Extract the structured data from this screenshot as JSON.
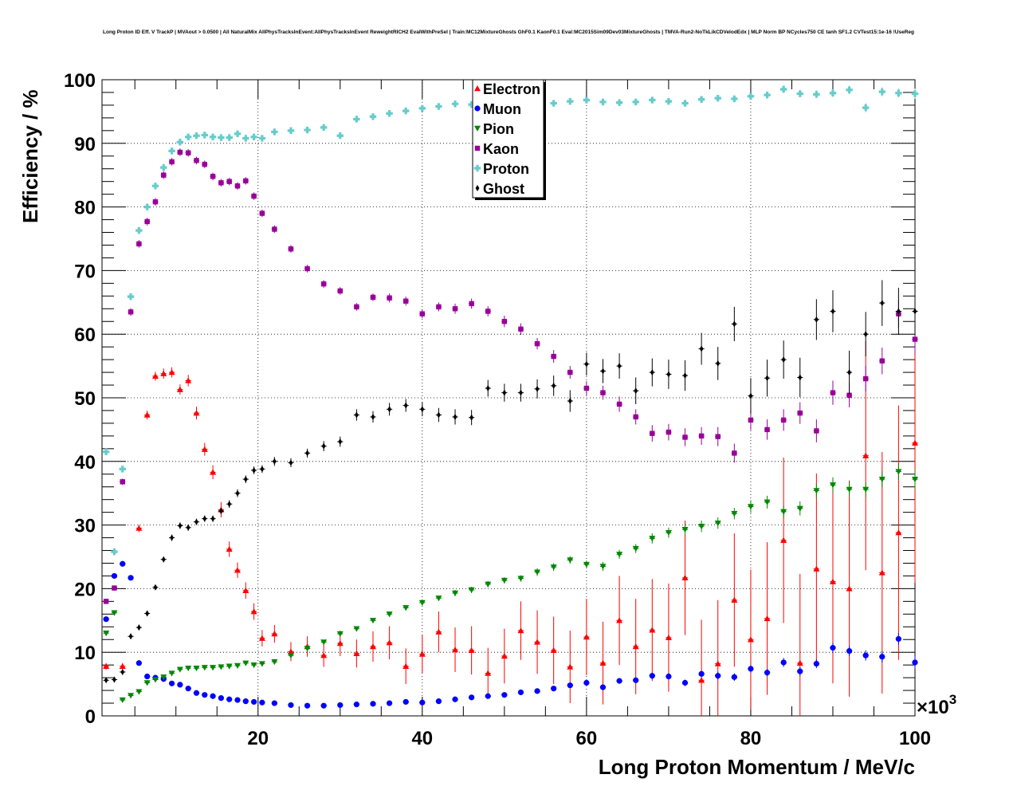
{
  "chart_data": {
    "type": "scatter",
    "title": "Long Proton ID Eff. V TrackP | MVAout > 0.0500 | All NaturalMix AllPhysTracksInEvent:AllPhysTracksInEvent ReweightRICH2 EvalWithPreSel | Train:MC12MixtureGhosts GhF0.1 KaonF0.1 Eval:MC2015Sim09Dev03MixtureGhosts | TMVA-Run2-NoTkLikCDVelodEdx | MLP Norm BP NCycles750 CE tanh SF1.2 CVTest15:1e-16 !UseReg",
    "xlabel": "Long Proton Momentum / MeV/c",
    "ylabel": "Efficiency / %",
    "x_multiplier": "×10",
    "x_multiplier_exp": "3",
    "xlim": [
      1,
      100
    ],
    "ylim": [
      0,
      100
    ],
    "x_ticks": [
      "20",
      "40",
      "60",
      "80",
      "100"
    ],
    "y_ticks": [
      "0",
      "10",
      "20",
      "30",
      "40",
      "50",
      "60",
      "70",
      "80",
      "90",
      "100"
    ],
    "grid": true,
    "legend_position": "top-center",
    "series": [
      {
        "name": "Electron",
        "color": "#ff0000",
        "marker": "triangle-up",
        "x": [
          1.5,
          3.5,
          5.5,
          6.5,
          7.5,
          8.5,
          9.5,
          10.5,
          11.5,
          12.5,
          13.5,
          14.5,
          15.5,
          16.5,
          17.5,
          18.5,
          19.5,
          20.5,
          22,
          24,
          26,
          28,
          30,
          32,
          34,
          36,
          38,
          40,
          42,
          44,
          46,
          48,
          50,
          52,
          54,
          56,
          58,
          60,
          62,
          64,
          66,
          68,
          70,
          72,
          74,
          76,
          78,
          80,
          82,
          84,
          86,
          88,
          90,
          92,
          94,
          96,
          98,
          100
        ],
        "y": [
          7.8,
          7.8,
          29.5,
          47.3,
          53.4,
          53.8,
          54,
          51.3,
          52.7,
          47.6,
          41.9,
          38.3,
          32.4,
          26.2,
          22.9,
          19.7,
          16.4,
          12.2,
          12.9,
          10.1,
          10.9,
          9.5,
          11.4,
          9.8,
          10.9,
          11.5,
          7.8,
          9.7,
          13.2,
          10.4,
          10.3,
          6.7,
          9.4,
          13.4,
          11.6,
          10.3,
          7.7,
          12.4,
          8.3,
          15,
          10.9,
          13.5,
          12.3,
          21.7,
          5.6,
          8.2,
          18.2,
          12,
          15.3,
          27.6,
          8.3,
          23.1,
          21.1,
          20,
          40.9,
          22.5,
          28.8,
          42.9
        ],
        "yerr": [
          0.5,
          0.5,
          0.6,
          0.7,
          0.7,
          0.8,
          0.8,
          0.8,
          0.9,
          1,
          1,
          1.1,
          1.2,
          1.2,
          1.2,
          1.3,
          1.3,
          1.3,
          1.4,
          1.5,
          1.6,
          1.8,
          2,
          2.2,
          2.4,
          2.6,
          2.8,
          3,
          3.2,
          3.5,
          3.8,
          4,
          4.3,
          4.6,
          5,
          5.3,
          5.7,
          6,
          6.5,
          7,
          7.5,
          8,
          8.5,
          9,
          9.5,
          10,
          10.5,
          11,
          12,
          13,
          14,
          15,
          16,
          17,
          18,
          19,
          20,
          22
        ]
      },
      {
        "name": "Muon",
        "color": "#0000ff",
        "marker": "circle",
        "x": [
          1.5,
          2.5,
          3.5,
          4.5,
          5.5,
          6.5,
          7.5,
          8.5,
          9.5,
          10.5,
          11.5,
          12.5,
          13.5,
          14.5,
          15.5,
          16.5,
          17.5,
          18.5,
          19.5,
          20.5,
          22,
          24,
          26,
          28,
          30,
          32,
          34,
          36,
          38,
          40,
          42,
          44,
          46,
          48,
          50,
          52,
          54,
          56,
          58,
          60,
          62,
          64,
          66,
          68,
          70,
          72,
          74,
          76,
          78,
          80,
          82,
          84,
          86,
          88,
          90,
          92,
          94,
          96,
          98,
          100
        ],
        "y": [
          15.2,
          22,
          23.9,
          21.7,
          8.3,
          6.2,
          6,
          5.8,
          5.1,
          4.9,
          4.3,
          3.6,
          3.3,
          3.1,
          2.8,
          2.6,
          2.5,
          2.3,
          2.2,
          2.1,
          2,
          1.7,
          1.6,
          1.6,
          1.7,
          1.8,
          1.9,
          2,
          2.2,
          2.1,
          2.3,
          2.6,
          2.9,
          3.1,
          3.3,
          3.7,
          3.9,
          4.3,
          4.8,
          5.2,
          4.5,
          5.5,
          5.6,
          6.3,
          6.2,
          5.2,
          6.6,
          6.3,
          6.1,
          7.4,
          6.8,
          8.4,
          7,
          8.2,
          10.7,
          10.2,
          9.5,
          9.3,
          12.1,
          8.4
        ],
        "yerr": [
          0.3,
          0.3,
          0.3,
          0.3,
          0.2,
          0.2,
          0.2,
          0.2,
          0.2,
          0.2,
          0.2,
          0.2,
          0.2,
          0.2,
          0.2,
          0.2,
          0.2,
          0.2,
          0.2,
          0.2,
          0.2,
          0.2,
          0.2,
          0.2,
          0.2,
          0.2,
          0.2,
          0.2,
          0.2,
          0.2,
          0.2,
          0.2,
          0.3,
          0.3,
          0.3,
          0.3,
          0.3,
          0.3,
          0.4,
          0.4,
          0.4,
          0.4,
          0.4,
          0.5,
          0.5,
          0.5,
          0.5,
          0.6,
          0.6,
          0.6,
          0.6,
          0.7,
          0.7,
          0.7,
          0.8,
          0.8,
          0.8,
          0.9,
          0.9,
          1
        ]
      },
      {
        "name": "Pion",
        "color": "#008800",
        "marker": "triangle-down",
        "x": [
          1.5,
          2.5,
          3.5,
          4.5,
          5.5,
          6.5,
          7.5,
          8.5,
          9.5,
          10.5,
          11.5,
          12.5,
          13.5,
          14.5,
          15.5,
          16.5,
          17.5,
          18.5,
          19.5,
          20.5,
          22,
          24,
          26,
          28,
          30,
          32,
          34,
          36,
          38,
          40,
          42,
          44,
          46,
          48,
          50,
          52,
          54,
          56,
          58,
          60,
          62,
          64,
          66,
          68,
          70,
          72,
          74,
          76,
          78,
          80,
          82,
          84,
          86,
          88,
          90,
          92,
          94,
          96,
          98,
          100
        ],
        "y": [
          13,
          16.2,
          2.5,
          3.2,
          3.8,
          5.2,
          5.7,
          6.1,
          6.7,
          7.3,
          7.5,
          7.5,
          7.6,
          7.6,
          7.7,
          7.8,
          7.9,
          8.3,
          8,
          8.2,
          8.5,
          9.5,
          10.6,
          11.6,
          12.9,
          13.7,
          15,
          16,
          17,
          17.8,
          18.5,
          19.3,
          19.8,
          20.7,
          21.3,
          21.6,
          22.6,
          23.4,
          24.5,
          23.8,
          23.5,
          25.4,
          26.3,
          27.9,
          28.8,
          29.3,
          29.8,
          30.3,
          31.8,
          32.9,
          33.6,
          32.1,
          32.6,
          35.4,
          36.3,
          35.6,
          35.6,
          37.2,
          38.4,
          37.2
        ],
        "yerr": [
          0.3,
          0.3,
          0.2,
          0.2,
          0.2,
          0.2,
          0.2,
          0.2,
          0.2,
          0.2,
          0.2,
          0.2,
          0.2,
          0.2,
          0.2,
          0.2,
          0.2,
          0.2,
          0.2,
          0.3,
          0.3,
          0.3,
          0.3,
          0.3,
          0.3,
          0.4,
          0.4,
          0.4,
          0.4,
          0.4,
          0.4,
          0.5,
          0.5,
          0.5,
          0.5,
          0.5,
          0.6,
          0.6,
          0.6,
          0.6,
          0.7,
          0.7,
          0.7,
          0.8,
          0.8,
          0.8,
          0.9,
          0.9,
          0.9,
          1,
          1,
          1,
          1.1,
          1.1,
          1.2,
          1.2,
          1.2,
          1.3,
          1.3,
          1.4
        ]
      },
      {
        "name": "Kaon",
        "color": "#990099",
        "marker": "square",
        "x": [
          1.5,
          2.5,
          3.5,
          4.5,
          5.5,
          6.5,
          7.5,
          8.5,
          9.5,
          10.5,
          11.5,
          12.5,
          13.5,
          14.5,
          15.5,
          16.5,
          17.5,
          18.5,
          19.5,
          20.5,
          22,
          24,
          26,
          28,
          30,
          32,
          34,
          36,
          38,
          40,
          42,
          44,
          46,
          48,
          50,
          52,
          54,
          56,
          58,
          60,
          62,
          64,
          66,
          68,
          70,
          72,
          74,
          76,
          78,
          80,
          82,
          84,
          86,
          88,
          90,
          92,
          94,
          96,
          98,
          100
        ],
        "y": [
          18,
          20.1,
          36.8,
          63.5,
          74.2,
          77.7,
          80.8,
          85,
          87.1,
          88.6,
          88.5,
          87.3,
          86.7,
          84.8,
          83.8,
          84,
          83.3,
          84.1,
          81.7,
          79,
          76.5,
          73.4,
          70.3,
          67.9,
          66.8,
          64.3,
          65.8,
          65.7,
          65.2,
          63.2,
          64.3,
          64,
          64.8,
          63.6,
          62,
          60.8,
          58.5,
          56.5,
          54,
          51.5,
          50.8,
          49,
          47,
          44.4,
          44.6,
          43.8,
          44,
          43.9,
          41.3,
          46.5,
          45,
          46.5,
          47.6,
          44.8,
          50.8,
          50.4,
          53,
          55.8,
          63.2,
          59.2
        ],
        "yerr": [
          0.4,
          0.4,
          0.5,
          0.6,
          0.6,
          0.6,
          0.6,
          0.6,
          0.6,
          0.6,
          0.6,
          0.6,
          0.6,
          0.6,
          0.6,
          0.6,
          0.6,
          0.6,
          0.6,
          0.6,
          0.6,
          0.6,
          0.6,
          0.6,
          0.6,
          0.6,
          0.6,
          0.7,
          0.7,
          0.7,
          0.7,
          0.8,
          0.8,
          0.8,
          0.9,
          0.9,
          0.9,
          1,
          1,
          1.1,
          1.1,
          1.2,
          1.2,
          1.3,
          1.3,
          1.4,
          1.4,
          1.5,
          1.5,
          1.6,
          1.6,
          1.7,
          1.7,
          1.8,
          1.9,
          1.9,
          2,
          2.1,
          2.2,
          2.3
        ]
      },
      {
        "name": "Proton",
        "color": "#66cccc",
        "marker": "cross",
        "x": [
          1.5,
          2.5,
          3.5,
          4.5,
          5.5,
          6.5,
          7.5,
          8.5,
          9.5,
          10.5,
          11.5,
          12.5,
          13.5,
          14.5,
          15.5,
          16.5,
          17.5,
          18.5,
          19.5,
          20.5,
          22,
          24,
          26,
          28,
          30,
          32,
          34,
          36,
          38,
          40,
          42,
          44,
          46,
          48,
          50,
          52,
          54,
          56,
          58,
          60,
          62,
          64,
          66,
          68,
          70,
          72,
          74,
          76,
          78,
          80,
          82,
          84,
          86,
          88,
          90,
          92,
          94,
          96,
          98,
          100
        ],
        "y": [
          41.5,
          25.8,
          38.8,
          65.9,
          76.3,
          80,
          83.3,
          86.2,
          88.8,
          90.2,
          91,
          91.2,
          91.3,
          91,
          90.9,
          90.9,
          91.5,
          90.8,
          91,
          90.8,
          91.8,
          92,
          92.1,
          92.5,
          91.2,
          93.8,
          94.2,
          94.7,
          95.1,
          95.5,
          95.8,
          96.2,
          96.1,
          96.3,
          96.5,
          96.2,
          96.3,
          96.3,
          96.6,
          96.8,
          96.5,
          96.4,
          96.5,
          96.8,
          96.6,
          96.3,
          96.9,
          97.1,
          97,
          97.4,
          97.6,
          98.5,
          97.8,
          97.7,
          97.9,
          98.4,
          95.6,
          98.1,
          97.9,
          97.8
        ],
        "yerr": [
          0.5,
          0.5,
          0.5,
          0.5,
          0.4,
          0.4,
          0.4,
          0.3,
          0.3,
          0.3,
          0.3,
          0.3,
          0.3,
          0.3,
          0.3,
          0.3,
          0.3,
          0.3,
          0.3,
          0.3,
          0.3,
          0.3,
          0.3,
          0.3,
          0.3,
          0.3,
          0.3,
          0.3,
          0.3,
          0.3,
          0.3,
          0.3,
          0.3,
          0.3,
          0.3,
          0.3,
          0.4,
          0.4,
          0.4,
          0.4,
          0.4,
          0.4,
          0.4,
          0.4,
          0.4,
          0.5,
          0.5,
          0.5,
          0.5,
          0.5,
          0.5,
          0.6,
          0.6,
          0.6,
          0.6,
          0.7,
          0.7,
          0.7,
          0.7,
          0.8
        ]
      },
      {
        "name": "Ghost",
        "color": "#000000",
        "marker": "diamond",
        "x": [
          1.5,
          2.5,
          3.5,
          4.5,
          5.5,
          6.5,
          7.5,
          8.5,
          9.5,
          10.5,
          11.5,
          12.5,
          13.5,
          14.5,
          15.5,
          16.5,
          17.5,
          18.5,
          19.5,
          20.5,
          22,
          24,
          26,
          28,
          30,
          32,
          34,
          36,
          38,
          40,
          42,
          44,
          46,
          48,
          50,
          52,
          54,
          56,
          58,
          60,
          62,
          64,
          66,
          68,
          70,
          72,
          74,
          76,
          78,
          80,
          82,
          84,
          86,
          88,
          90,
          92,
          94,
          96,
          98,
          100
        ],
        "y": [
          5.6,
          5.7,
          6.9,
          12.5,
          13.9,
          16.1,
          20.2,
          24.6,
          28,
          29.9,
          29.6,
          30.5,
          31,
          31,
          32.2,
          33.3,
          35,
          37.2,
          38.6,
          38.8,
          40,
          39.8,
          41.3,
          42.4,
          43.1,
          47.3,
          47,
          48.2,
          48.8,
          48.2,
          47.3,
          47,
          46.9,
          51.5,
          50.8,
          50.8,
          51.4,
          51.9,
          49.5,
          55.3,
          54.2,
          55,
          51.1,
          54,
          53.7,
          53.5,
          57.7,
          55.4,
          61.6,
          50.3,
          53.1,
          56,
          53.2,
          62.3,
          63.6,
          54,
          60,
          64.9,
          63.6,
          63.6
        ],
        "yerr": [
          0.3,
          0.3,
          0.3,
          0.4,
          0.4,
          0.4,
          0.4,
          0.4,
          0.5,
          0.5,
          0.5,
          0.5,
          0.5,
          0.5,
          0.5,
          0.6,
          0.6,
          0.6,
          0.6,
          0.6,
          0.7,
          0.7,
          0.7,
          0.8,
          0.8,
          0.9,
          0.9,
          1,
          1,
          1.1,
          1.1,
          1.2,
          1.2,
          1.3,
          1.4,
          1.4,
          1.5,
          1.6,
          1.7,
          1.8,
          1.9,
          2,
          2.1,
          2.2,
          2.3,
          2.4,
          2.5,
          2.6,
          2.7,
          2.8,
          2.9,
          3,
          3.1,
          3.2,
          3.3,
          3.4,
          3.5,
          3.6,
          3.7,
          3.8
        ]
      }
    ]
  }
}
